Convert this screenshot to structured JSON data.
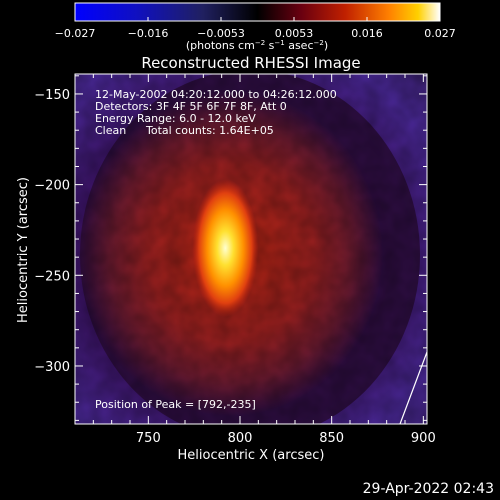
{
  "chart_data": {
    "type": "heatmap",
    "title": "Reconstructed RHESSI Image",
    "xlabel": "Heliocentric X (arcsec)",
    "ylabel": "Heliocentric Y (arcsec)",
    "xlim": [
      710,
      902
    ],
    "ylim": [
      -332,
      -139
    ],
    "x_ticks": [
      750,
      800,
      850,
      900
    ],
    "y_ticks": [
      -150,
      -200,
      -250,
      -300
    ],
    "colorbar": {
      "ticks": [
        "−0.027",
        "−0.016",
        "−0.0053",
        "0.0053",
        "0.016",
        "0.027"
      ],
      "range": [
        -0.027,
        0.027
      ],
      "label_main": "(photons cm",
      "label_exp1": "−2",
      "label_mid": " s",
      "label_exp2": "−1",
      "label_tail": " asec",
      "label_exp3": "−2",
      "label_close": ")"
    },
    "annotations": {
      "time_range": "12-May-2002 04:20:12.000 to 04:26:12.000",
      "detectors": "Detectors: 3F 4F 5F 6F 7F 8F, Att 0",
      "energy": "Energy Range: 6.0 - 12.0 keV",
      "clean_label": "Clean",
      "total_counts": "Total counts: 1.64E+05",
      "peak": "Position of Peak = [792,-235]"
    },
    "peak": {
      "x": 792,
      "y": -235,
      "value": 0.027
    },
    "source_blob": {
      "center_x": 795,
      "center_y": -238,
      "radius": 83,
      "level": 0.009
    },
    "colors": {
      "background": "#000000",
      "text": "#ffffff"
    }
  },
  "footer": {
    "timestamp": "29-Apr-2022 02:43"
  }
}
